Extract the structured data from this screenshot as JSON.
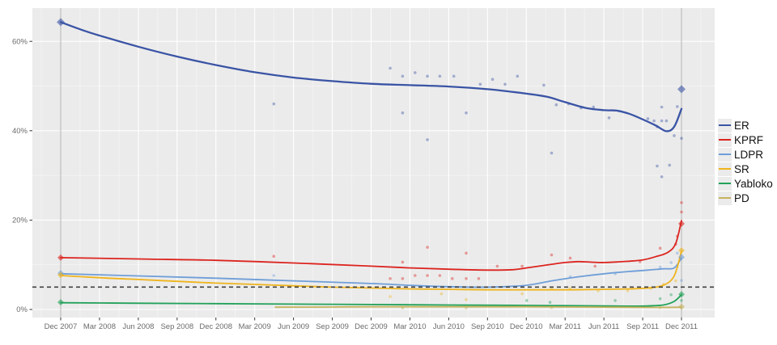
{
  "figure": {
    "background": "#ffffff",
    "panel_background": "#ebebeb",
    "grid_major_color": "#ffffff",
    "grid_minor_color": "#f6f6f6",
    "axis_text_color": "#6b6b6b",
    "tick_color": "#333333",
    "event_line_color": "#bdbdbd",
    "threshold_color": "#404040"
  },
  "chart_data": {
    "type": "line",
    "subtype": "smoothed poll-of-polls trend lines with raw poll scatter and election-result diamonds",
    "title": "",
    "xlabel": "",
    "ylabel": "",
    "ylim": [
      -1.8,
      67.5
    ],
    "xlim_years": [
      2007.74,
      2012.1
    ],
    "grid": true,
    "legend_position": "right",
    "x_ticks": [
      {
        "label": "Dec 2007",
        "year": 2007.917
      },
      {
        "label": "Mar 2008",
        "year": 2008.167
      },
      {
        "label": "Jun 2008",
        "year": 2008.417
      },
      {
        "label": "Sep 2008",
        "year": 2008.667
      },
      {
        "label": "Dec 2008",
        "year": 2008.917
      },
      {
        "label": "Mar 2009",
        "year": 2009.167
      },
      {
        "label": "Jun 2009",
        "year": 2009.417
      },
      {
        "label": "Sep 2009",
        "year": 2009.667
      },
      {
        "label": "Dec 2009",
        "year": 2009.917
      },
      {
        "label": "Mar 2010",
        "year": 2010.167
      },
      {
        "label": "Jun 2010",
        "year": 2010.417
      },
      {
        "label": "Sep 2010",
        "year": 2010.667
      },
      {
        "label": "Dec 2010",
        "year": 2010.917
      },
      {
        "label": "Mar 2011",
        "year": 2011.167
      },
      {
        "label": "Jun 2011",
        "year": 2011.417
      },
      {
        "label": "Sep 2011",
        "year": 2011.667
      },
      {
        "label": "Dec 2011",
        "year": 2011.917
      }
    ],
    "y_ticks": [
      {
        "label": "0%",
        "value": 0
      },
      {
        "label": "20%",
        "value": 20
      },
      {
        "label": "40%",
        "value": 40
      },
      {
        "label": "60%",
        "value": 60
      }
    ],
    "y_minor": [
      10,
      30,
      50
    ],
    "event_vlines_years": [
      2007.917,
      2011.917
    ],
    "threshold_line": {
      "value": 5,
      "style": "dashed"
    },
    "series": [
      {
        "name": "ER",
        "color": "#3a54a5",
        "trend": [
          [
            2007.917,
            64.3
          ],
          [
            2008.05,
            62.6
          ],
          [
            2008.167,
            61.3
          ],
          [
            2008.417,
            58.8
          ],
          [
            2008.667,
            56.6
          ],
          [
            2008.917,
            54.7
          ],
          [
            2009.167,
            53.1
          ],
          [
            2009.417,
            51.9
          ],
          [
            2009.667,
            51.1
          ],
          [
            2009.917,
            50.5
          ],
          [
            2010.167,
            50.2
          ],
          [
            2010.417,
            49.9
          ],
          [
            2010.667,
            49.3
          ],
          [
            2010.917,
            48.3
          ],
          [
            2011.05,
            47.6
          ],
          [
            2011.167,
            46.4
          ],
          [
            2011.3,
            45.1
          ],
          [
            2011.42,
            44.6
          ],
          [
            2011.5,
            44.5
          ],
          [
            2011.58,
            43.8
          ],
          [
            2011.67,
            42.5
          ],
          [
            2011.75,
            41.2
          ],
          [
            2011.82,
            39.9
          ],
          [
            2011.87,
            40.9
          ],
          [
            2011.917,
            44.9
          ]
        ],
        "polls": [
          [
            2009.29,
            46
          ],
          [
            2010.04,
            54
          ],
          [
            2010.12,
            52.2
          ],
          [
            2010.12,
            44
          ],
          [
            2010.2,
            53
          ],
          [
            2010.28,
            52.2
          ],
          [
            2010.28,
            38
          ],
          [
            2010.36,
            52.2
          ],
          [
            2010.45,
            52.2
          ],
          [
            2010.53,
            44
          ],
          [
            2010.62,
            50.4
          ],
          [
            2010.7,
            51.5
          ],
          [
            2010.78,
            50.4
          ],
          [
            2010.86,
            52.2
          ],
          [
            2011.03,
            50.2
          ],
          [
            2011.08,
            35
          ],
          [
            2011.11,
            45.8
          ],
          [
            2011.19,
            46
          ],
          [
            2011.27,
            45.1
          ],
          [
            2011.35,
            45.3
          ],
          [
            2011.45,
            42.9
          ],
          [
            2011.7,
            42.7
          ],
          [
            2011.74,
            42.2
          ],
          [
            2011.76,
            40.9
          ],
          [
            2011.76,
            32.1
          ],
          [
            2011.79,
            42.2
          ],
          [
            2011.79,
            29.7
          ],
          [
            2011.79,
            45.3
          ],
          [
            2011.82,
            42.2
          ],
          [
            2011.84,
            32.3
          ],
          [
            2011.87,
            38.9
          ],
          [
            2011.89,
            45.4
          ],
          [
            2011.917,
            38.3
          ]
        ],
        "elections": [
          [
            2007.917,
            64.3
          ],
          [
            2011.917,
            49.3
          ]
        ]
      },
      {
        "name": "KPRF",
        "color": "#dc241f",
        "trend": [
          [
            2007.917,
            11.6
          ],
          [
            2008.417,
            11.3
          ],
          [
            2008.917,
            11.0
          ],
          [
            2009.417,
            10.4
          ],
          [
            2009.917,
            9.7
          ],
          [
            2010.167,
            9.3
          ],
          [
            2010.417,
            9.0
          ],
          [
            2010.667,
            8.8
          ],
          [
            2010.83,
            8.9
          ],
          [
            2010.917,
            9.3
          ],
          [
            2011.08,
            10.1
          ],
          [
            2011.167,
            10.5
          ],
          [
            2011.25,
            10.7
          ],
          [
            2011.33,
            10.6
          ],
          [
            2011.42,
            10.5
          ],
          [
            2011.58,
            10.8
          ],
          [
            2011.67,
            11.1
          ],
          [
            2011.75,
            11.8
          ],
          [
            2011.83,
            12.8
          ],
          [
            2011.88,
            14.8
          ],
          [
            2011.917,
            19.9
          ]
        ],
        "polls": [
          [
            2009.29,
            11.9
          ],
          [
            2010.04,
            6.9
          ],
          [
            2010.12,
            6.9
          ],
          [
            2010.12,
            10.6
          ],
          [
            2010.2,
            7.6
          ],
          [
            2010.28,
            13.9
          ],
          [
            2010.28,
            7.6
          ],
          [
            2010.36,
            7.6
          ],
          [
            2010.44,
            6.9
          ],
          [
            2010.53,
            6.9
          ],
          [
            2010.53,
            12.6
          ],
          [
            2010.61,
            6.9
          ],
          [
            2010.73,
            9.7
          ],
          [
            2010.89,
            9.7
          ],
          [
            2011.08,
            12.2
          ],
          [
            2011.2,
            11.5
          ],
          [
            2011.36,
            9.7
          ],
          [
            2011.65,
            10.7
          ],
          [
            2011.78,
            13.7
          ],
          [
            2011.88,
            14.6
          ],
          [
            2011.89,
            16.4
          ],
          [
            2011.917,
            23.9
          ],
          [
            2011.917,
            21.8
          ]
        ],
        "elections": [
          [
            2007.917,
            11.6
          ],
          [
            2011.917,
            19.2
          ]
        ]
      },
      {
        "name": "LDPR",
        "color": "#6f9ed8",
        "trend": [
          [
            2007.917,
            8.0
          ],
          [
            2008.417,
            7.5
          ],
          [
            2008.917,
            7.0
          ],
          [
            2009.417,
            6.4
          ],
          [
            2009.917,
            5.8
          ],
          [
            2010.167,
            5.4
          ],
          [
            2010.417,
            5.1
          ],
          [
            2010.667,
            5.0
          ],
          [
            2010.917,
            5.4
          ],
          [
            2011.08,
            6.4
          ],
          [
            2011.25,
            7.3
          ],
          [
            2011.42,
            8.0
          ],
          [
            2011.58,
            8.5
          ],
          [
            2011.7,
            8.8
          ],
          [
            2011.8,
            9.1
          ],
          [
            2011.87,
            9.3
          ],
          [
            2011.917,
            11.5
          ]
        ],
        "polls": [
          [
            2009.29,
            7.6
          ],
          [
            2011.2,
            7.3
          ],
          [
            2011.49,
            8.0
          ],
          [
            2011.78,
            9.5
          ],
          [
            2011.85,
            10.5
          ],
          [
            2011.89,
            12.6
          ],
          [
            2011.917,
            6.5
          ]
        ],
        "elections": [
          [
            2007.917,
            8.1
          ],
          [
            2011.917,
            11.7
          ]
        ]
      },
      {
        "name": "SR",
        "color": "#efb41d",
        "trend": [
          [
            2007.917,
            7.6
          ],
          [
            2008.167,
            7.1
          ],
          [
            2008.417,
            6.7
          ],
          [
            2008.667,
            6.3
          ],
          [
            2008.917,
            5.9
          ],
          [
            2009.167,
            5.6
          ],
          [
            2009.417,
            5.3
          ],
          [
            2009.667,
            5.0
          ],
          [
            2009.917,
            4.8
          ],
          [
            2010.167,
            4.6
          ],
          [
            2010.417,
            4.5
          ],
          [
            2010.667,
            4.4
          ],
          [
            2010.917,
            4.4
          ],
          [
            2011.167,
            4.4
          ],
          [
            2011.42,
            4.5
          ],
          [
            2011.58,
            4.6
          ],
          [
            2011.7,
            4.8
          ],
          [
            2011.8,
            5.4
          ],
          [
            2011.87,
            7.5
          ],
          [
            2011.917,
            13.1
          ]
        ],
        "polls": [
          [
            2010.04,
            2.9
          ],
          [
            2010.37,
            3.5
          ],
          [
            2010.53,
            2.2
          ],
          [
            2010.89,
            3.5
          ],
          [
            2011.08,
            4.7
          ],
          [
            2011.2,
            4.7
          ],
          [
            2011.38,
            4.2
          ],
          [
            2011.57,
            4.2
          ],
          [
            2011.72,
            4.7
          ],
          [
            2011.8,
            5.6
          ],
          [
            2011.88,
            6.4
          ]
        ],
        "elections": [
          [
            2007.917,
            7.7
          ],
          [
            2011.917,
            13.2
          ]
        ]
      },
      {
        "name": "Yabloko",
        "color": "#21a159",
        "trend": [
          [
            2007.917,
            1.5
          ],
          [
            2008.417,
            1.4
          ],
          [
            2008.917,
            1.3
          ],
          [
            2009.417,
            1.2
          ],
          [
            2009.917,
            1.1
          ],
          [
            2010.417,
            1.0
          ],
          [
            2010.917,
            0.9
          ],
          [
            2011.167,
            0.85
          ],
          [
            2011.42,
            0.8
          ],
          [
            2011.58,
            0.75
          ],
          [
            2011.7,
            0.8
          ],
          [
            2011.8,
            1.0
          ],
          [
            2011.87,
            1.8
          ],
          [
            2011.917,
            3.3
          ]
        ],
        "polls": [
          [
            2010.92,
            2.0
          ],
          [
            2011.07,
            1.6
          ],
          [
            2011.49,
            2.0
          ],
          [
            2011.78,
            2.4
          ],
          [
            2011.85,
            3.3
          ],
          [
            2011.917,
            2.0
          ]
        ],
        "elections": [
          [
            2007.917,
            1.6
          ],
          [
            2011.917,
            3.4
          ]
        ]
      },
      {
        "name": "PD",
        "color": "#c6b35e",
        "trend": [
          [
            2009.3,
            0.5
          ],
          [
            2009.667,
            0.55
          ],
          [
            2009.917,
            0.6
          ],
          [
            2010.417,
            0.6
          ],
          [
            2010.917,
            0.6
          ],
          [
            2011.25,
            0.55
          ],
          [
            2011.5,
            0.5
          ],
          [
            2011.75,
            0.45
          ],
          [
            2011.917,
            0.5
          ]
        ],
        "polls": [
          [
            2010.12,
            0.3
          ],
          [
            2010.53,
            0.3
          ],
          [
            2011.08,
            0.4
          ],
          [
            2011.78,
            0.4
          ]
        ],
        "elections": [
          [
            2011.917,
            0.6
          ]
        ]
      }
    ],
    "legend_entries": [
      "ER",
      "KPRF",
      "LDPR",
      "SR",
      "Yabloko",
      "PD"
    ]
  }
}
